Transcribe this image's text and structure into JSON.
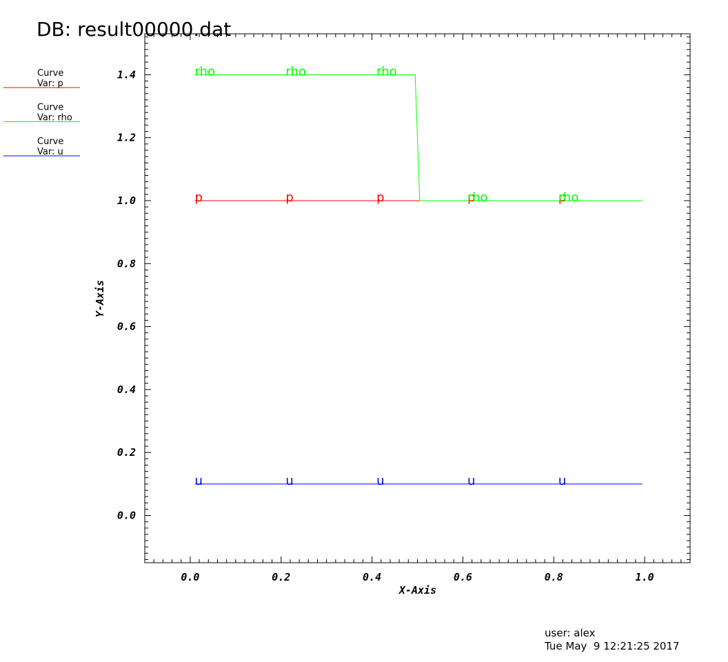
{
  "title": "DB: result00000.dat",
  "footer": {
    "user": "user: alex",
    "timestamp": "Tue May  9 12:21:25 2017"
  },
  "chart_data": {
    "type": "line",
    "xlabel": "X-Axis",
    "ylabel": "Y-Axis",
    "xlim": [
      -0.1,
      1.1
    ],
    "ylim": [
      -0.15,
      1.53
    ],
    "x_ticks": [
      "0.0",
      "0.2",
      "0.4",
      "0.6",
      "0.8",
      "1.0"
    ],
    "y_ticks": [
      "0.0",
      "0.2",
      "0.4",
      "0.6",
      "0.8",
      "1.0",
      "1.2",
      "1.4"
    ],
    "grid": false,
    "legend_position": "left",
    "series": [
      {
        "name": "p",
        "legend_title": "Curve",
        "legend_var": "Var: p",
        "color": "#ff0000",
        "points": [
          [
            0.01,
            1.0
          ],
          [
            0.995,
            1.0
          ]
        ],
        "label_x": [
          0.01,
          0.21,
          0.41,
          0.61,
          0.81
        ]
      },
      {
        "name": "rho",
        "legend_title": "Curve",
        "legend_var": "Var: rho",
        "color": "#00ff00",
        "points": [
          [
            0.01,
            1.4
          ],
          [
            0.495,
            1.4
          ],
          [
            0.505,
            1.0
          ],
          [
            0.995,
            1.0
          ]
        ],
        "label_x": [
          0.01,
          0.21,
          0.41,
          0.61,
          0.81
        ]
      },
      {
        "name": "u",
        "legend_title": "Curve",
        "legend_var": "Var: u",
        "color": "#0000ff",
        "points": [
          [
            0.01,
            0.1
          ],
          [
            0.995,
            0.1
          ]
        ],
        "label_x": [
          0.01,
          0.21,
          0.41,
          0.61,
          0.81
        ]
      }
    ]
  }
}
